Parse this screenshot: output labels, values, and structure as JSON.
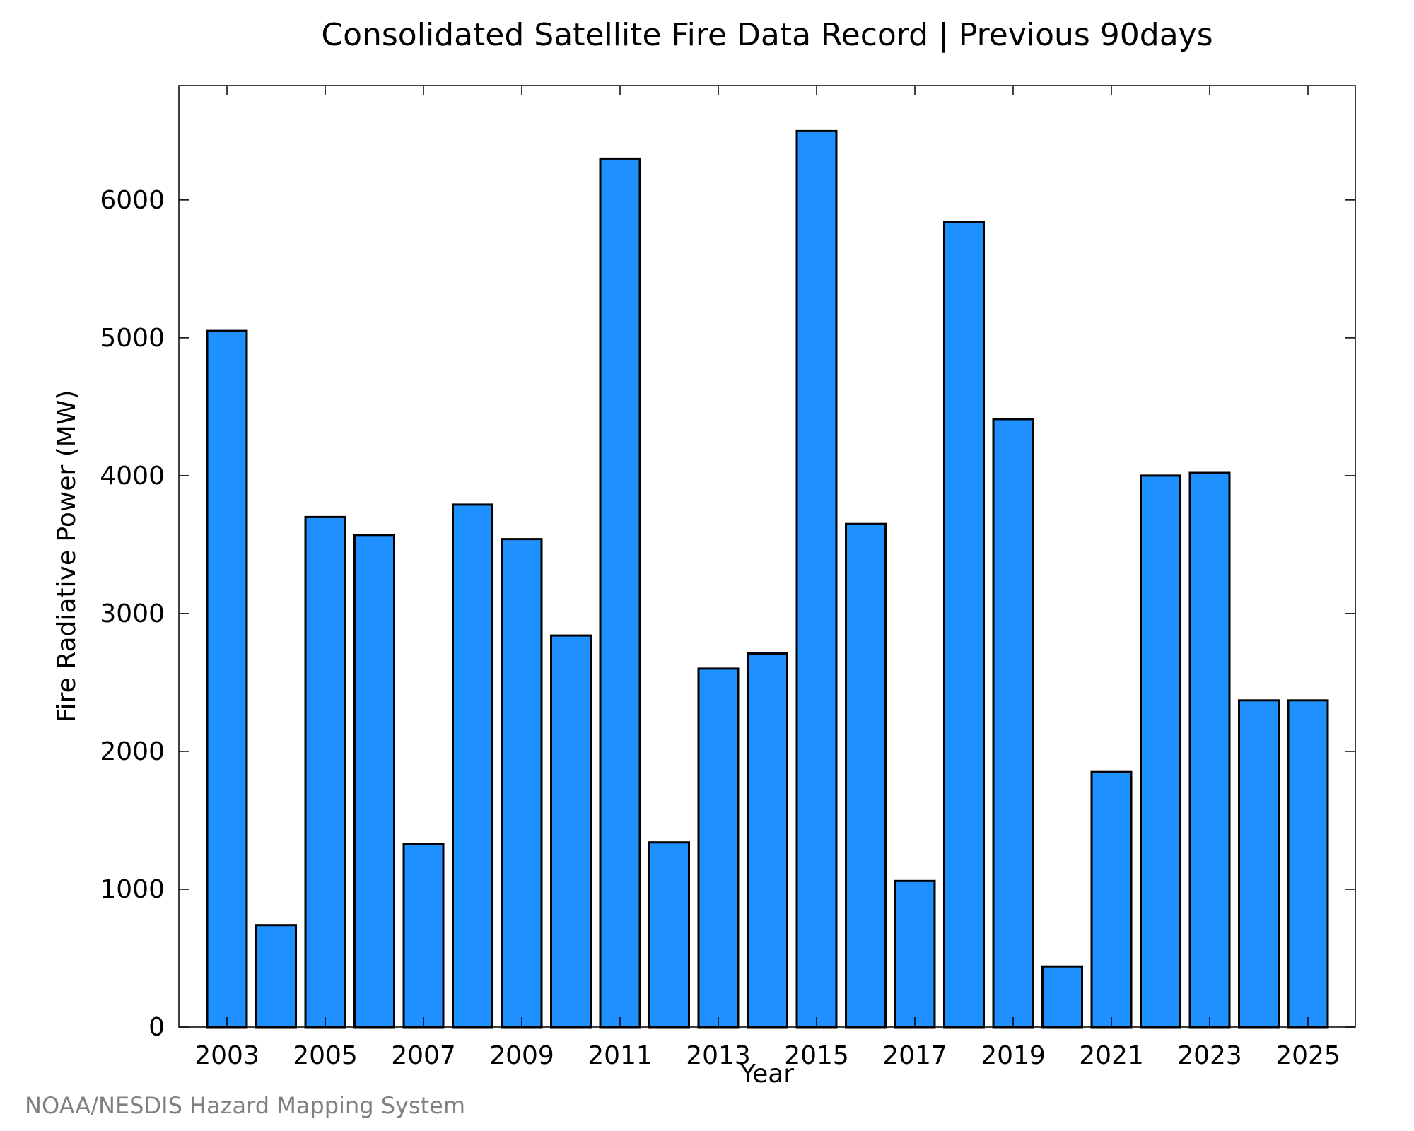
{
  "chart_data": {
    "type": "bar",
    "title": "Consolidated Satellite Fire Data Record | Previous 90days",
    "xlabel": "Year",
    "ylabel": "Fire Radiative Power (MW)",
    "categories": [
      "2003",
      "2004",
      "2005",
      "2006",
      "2007",
      "2008",
      "2009",
      "2010",
      "2011",
      "2012",
      "2013",
      "2014",
      "2015",
      "2016",
      "2017",
      "2018",
      "2019",
      "2020",
      "2021",
      "2022",
      "2023",
      "2024",
      "2025"
    ],
    "values": [
      5050,
      740,
      3700,
      3570,
      1330,
      3790,
      3540,
      2840,
      6300,
      1340,
      2600,
      2710,
      6500,
      3650,
      1060,
      5840,
      4410,
      440,
      1850,
      4000,
      4020,
      2370,
      2370
    ],
    "x_tick_labels": [
      "2003",
      "2005",
      "2007",
      "2009",
      "2011",
      "2013",
      "2015",
      "2017",
      "2019",
      "2021",
      "2023",
      "2025"
    ],
    "y_ticks": [
      0,
      1000,
      2000,
      3000,
      4000,
      5000,
      6000
    ],
    "ylim": [
      0,
      6830
    ],
    "grid": false,
    "bar_color": "#1e90ff",
    "bar_edge_color": "#000000"
  },
  "credit": {
    "text": "NOAA/NESDIS Hazard Mapping System",
    "color": "#808080"
  }
}
